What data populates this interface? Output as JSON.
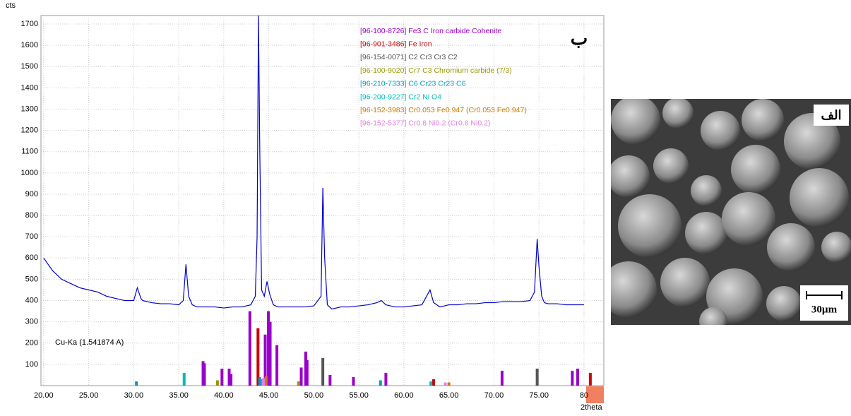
{
  "chart_data": {
    "type": "line",
    "y_unit": "cts",
    "x_label": "2theta",
    "annotation": "Cu-Ka (1.541874 A)",
    "panel_label": "ب",
    "xlim": [
      19.7,
      82.2
    ],
    "ylim": [
      0,
      1740
    ],
    "grid": true,
    "xticks": [
      {
        "value": 20,
        "label": "20.00"
      },
      {
        "value": 25,
        "label": "25.00"
      },
      {
        "value": 30,
        "label": "30.00"
      },
      {
        "value": 35,
        "label": "35.00"
      },
      {
        "value": 40,
        "label": "40.00"
      },
      {
        "value": 45,
        "label": "45.00"
      },
      {
        "value": 50,
        "label": "50.00"
      },
      {
        "value": 55,
        "label": "55.00"
      },
      {
        "value": 60,
        "label": "60.00"
      },
      {
        "value": 65,
        "label": "65.00"
      },
      {
        "value": 70,
        "label": "70.00"
      },
      {
        "value": 75,
        "label": "75.00"
      },
      80
    ],
    "yticks": [
      100,
      200,
      300,
      400,
      500,
      600,
      700,
      800,
      900,
      1000,
      1100,
      1200,
      1300,
      1400,
      1500,
      1600,
      1700
    ],
    "series": [
      {
        "mark": "line",
        "color": "#0000cc",
        "x": [
          20,
          21,
          22,
          23,
          24,
          25,
          26,
          27,
          28,
          29,
          30,
          30.4,
          30.8,
          31,
          32,
          33,
          34,
          35,
          35.5,
          35.8,
          36.1,
          36.5,
          37,
          38,
          39,
          40,
          41,
          42,
          43,
          43.5,
          43.7,
          43.85,
          44.0,
          44.2,
          44.5,
          44.8,
          45.1,
          45.5,
          46,
          47,
          48,
          49,
          50,
          50.8,
          51.0,
          51.2,
          51.5,
          52,
          53,
          54,
          55,
          56,
          57,
          57.5,
          58,
          59,
          60,
          61,
          62,
          62.9,
          63.3,
          64,
          65,
          66,
          67,
          68,
          69,
          70,
          71,
          72,
          73,
          74,
          74.5,
          74.8,
          75.0,
          75.3,
          75.6,
          76,
          77,
          78,
          79,
          80
        ],
        "values": [
          600,
          540,
          500,
          480,
          460,
          450,
          440,
          420,
          410,
          400,
          400,
          460,
          410,
          400,
          390,
          385,
          385,
          380,
          400,
          570,
          420,
          380,
          370,
          370,
          370,
          365,
          370,
          370,
          380,
          420,
          700,
          1740,
          1100,
          450,
          420,
          490,
          430,
          380,
          370,
          370,
          370,
          370,
          375,
          420,
          930,
          600,
          380,
          360,
          370,
          370,
          375,
          380,
          390,
          400,
          380,
          370,
          370,
          375,
          380,
          450,
          390,
          370,
          380,
          380,
          385,
          385,
          390,
          390,
          395,
          395,
          395,
          400,
          440,
          690,
          560,
          420,
          390,
          385,
          385,
          380,
          380,
          380
        ]
      },
      {
        "mark": "stick",
        "name": "[96-100-8726] Fe3 C Iron carbide Cohenite",
        "color": "#9900cc",
        "x": [
          37.7,
          37.85,
          39.8,
          40.6,
          40.8,
          42.9,
          44.6,
          44.95,
          45.15,
          45.9,
          48.6,
          49.1,
          49.25,
          51.8,
          54.4,
          58.0,
          70.9,
          78.7,
          79.3
        ],
        "values": [
          115,
          105,
          80,
          80,
          55,
          350,
          240,
          350,
          300,
          190,
          85,
          160,
          120,
          50,
          40,
          60,
          70,
          70,
          80
        ]
      },
      {
        "mark": "stick",
        "name": "[96-901-3486] Fe Iron",
        "color": "#cc0000",
        "x": [
          43.8,
          63.3,
          80.7
        ],
        "values": [
          270,
          30,
          60
        ]
      },
      {
        "mark": "stick",
        "name": "[96-154-0071] C2 Cr3 Cr3 C2",
        "color": "#555555",
        "x": [
          51.0,
          74.8
        ],
        "values": [
          130,
          80
        ]
      },
      {
        "mark": "stick",
        "name": "[96-100-9020] Cr7 C3 Chromium carbide (7/3)",
        "color": "#999900",
        "x": [
          39.3,
          44.3,
          48.3
        ],
        "values": [
          25,
          30,
          20
        ]
      },
      {
        "mark": "stick",
        "name": "[96-210-7333] C6 Cr23 Cr23 C6",
        "color": "#0099cc",
        "x": [
          30.3,
          44.0,
          57.4
        ],
        "values": [
          20,
          40,
          25
        ]
      },
      {
        "mark": "stick",
        "name": "[96-200-9227] Cr2 Ni O4",
        "color": "#00bbbb",
        "x": [
          35.6,
          63.0
        ],
        "values": [
          60,
          20
        ]
      },
      {
        "mark": "stick",
        "name": "[96-152-3983] Cr0.053 Fe0.947 (Cr0.053 Fe0.947)",
        "color": "#cc7a00",
        "x": [
          44.7,
          65.0
        ],
        "values": [
          45,
          15
        ]
      },
      {
        "mark": "stick",
        "name": "[96-152-5377] Cr0.8 Ni0.2 (Cr0.8 Ni0.2)",
        "color": "#e080e0",
        "x": [
          44.4,
          64.6
        ],
        "values": [
          35,
          15
        ]
      }
    ]
  },
  "image_panel": {
    "label": "الف",
    "scale_bar": "30µm"
  }
}
